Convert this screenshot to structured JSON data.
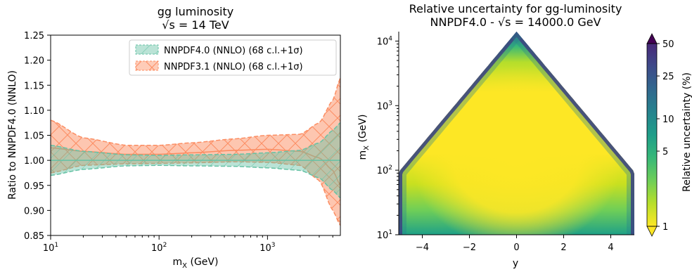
{
  "chart_data": [
    {
      "type": "line",
      "title_line1": "gg luminosity",
      "title_line2": "√s = 14 TeV",
      "xlabel": "m",
      "xlabel_sub": "X",
      "xlabel_unit": "(GeV)",
      "ylabel": "Ratio to NNPDF4.0 (NNLO)",
      "xscale": "log",
      "xlim": [
        10,
        4700
      ],
      "ylim": [
        0.85,
        1.25
      ],
      "x_ticks": [
        {
          "base": "10",
          "exp": "1",
          "value": 10
        },
        {
          "base": "10",
          "exp": "2",
          "value": 100
        },
        {
          "base": "10",
          "exp": "3",
          "value": 1000
        }
      ],
      "y_ticks": [
        "0.85",
        "0.90",
        "0.95",
        "1.00",
        "1.05",
        "1.10",
        "1.15",
        "1.20",
        "1.25"
      ],
      "legend_position": "top-right",
      "x": [
        10,
        20,
        50,
        100,
        200,
        500,
        1000,
        2000,
        3000,
        4000,
        4700
      ],
      "series": [
        {
          "name": "NNPDF4.0 (NNLO) (68 c.l.+1σ)",
          "color": "#66c2a5",
          "central": [
            1.0,
            1.0,
            1.0,
            1.0,
            1.0,
            1.0,
            1.0,
            1.0,
            1.0,
            1.0,
            1.0
          ],
          "upper": [
            1.03,
            1.018,
            1.011,
            1.01,
            1.011,
            1.012,
            1.015,
            1.02,
            1.035,
            1.06,
            1.075
          ],
          "lower": [
            0.97,
            0.982,
            0.989,
            0.99,
            0.989,
            0.988,
            0.985,
            0.98,
            0.965,
            0.94,
            0.925
          ]
        },
        {
          "name": "NNPDF3.1 (NNLO) (68 c.l.+1σ)",
          "color": "#fc8d62",
          "central": [
            1.025,
            1.018,
            1.012,
            1.012,
            1.015,
            1.02,
            1.022,
            1.018,
            1.005,
            0.98,
            0.95
          ],
          "upper": [
            1.08,
            1.045,
            1.03,
            1.03,
            1.035,
            1.043,
            1.05,
            1.052,
            1.075,
            1.12,
            1.165
          ],
          "lower": [
            0.975,
            0.99,
            0.993,
            0.994,
            0.995,
            0.997,
            0.996,
            0.99,
            0.96,
            0.9,
            0.87
          ]
        }
      ]
    },
    {
      "type": "heatmap",
      "title_line1": "Relative uncertainty for gg-luminosity",
      "title_line2": "NNPDF4.0 - √s = 14000.0 GeV",
      "xlabel": "y",
      "ylabel": "m",
      "ylabel_sub": "X",
      "ylabel_unit": "(GeV)",
      "xlim": [
        -5,
        5
      ],
      "ylim": [
        10,
        14000
      ],
      "yscale": "log",
      "x_ticks": [
        "−4",
        "−2",
        "0",
        "2",
        "4"
      ],
      "x_tick_values": [
        -4,
        -2,
        0,
        2,
        4
      ],
      "y_ticks": [
        {
          "base": "10",
          "exp": "1",
          "value": 10
        },
        {
          "base": "10",
          "exp": "2",
          "value": 100
        },
        {
          "base": "10",
          "exp": "3",
          "value": 1000
        },
        {
          "base": "10",
          "exp": "4",
          "value": 10000
        }
      ],
      "colormap": "viridis_r",
      "colorbar_label": "Relative uncertainty (%)",
      "colorbar_scale": "log",
      "colorbar_range": [
        1,
        50
      ],
      "colorbar_ticks": [
        "1",
        "5",
        "10",
        "25",
        "50"
      ],
      "colorbar_tick_values": [
        1,
        5,
        10,
        25,
        50
      ],
      "colorbar_extend": "both"
    }
  ]
}
